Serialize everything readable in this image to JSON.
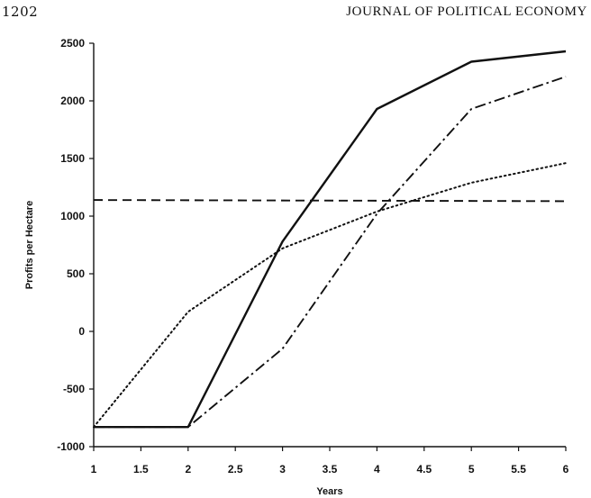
{
  "page": {
    "page_number": "1202",
    "journal_title": "JOURNAL OF POLITICAL ECONOMY"
  },
  "chart_data": {
    "type": "line",
    "title": "",
    "xlabel": "Years",
    "ylabel": "Profits per Hectare",
    "xlim": [
      1,
      6
    ],
    "ylim": [
      -1000,
      2500
    ],
    "xticks": [
      1,
      1.5,
      2,
      2.5,
      3,
      3.5,
      4,
      4.5,
      5,
      5.5,
      6
    ],
    "yticks": [
      -1000,
      -500,
      0,
      500,
      1000,
      1500,
      2000,
      2500
    ],
    "xtick_labels": [
      "1",
      "1.5",
      "2",
      "2.5",
      "3",
      "3.5",
      "4",
      "4.5",
      "5",
      "5.5",
      "6"
    ],
    "ytick_labels": [
      "-1000",
      "-500",
      "0",
      "500",
      "1000",
      "1500",
      "2000",
      "2500"
    ],
    "grid": false,
    "legend": "none",
    "series": [
      {
        "style": "solid",
        "x": [
          1,
          2,
          3,
          4,
          5,
          6
        ],
        "y": [
          -830,
          -830,
          780,
          1930,
          2340,
          2430
        ]
      },
      {
        "style": "dashdot",
        "x": [
          1,
          2,
          3,
          4,
          5,
          6
        ],
        "y": [
          -830,
          -830,
          -150,
          1020,
          1930,
          2210
        ]
      },
      {
        "style": "dotted",
        "x": [
          1,
          2,
          3,
          4,
          5,
          6
        ],
        "y": [
          -830,
          170,
          720,
          1040,
          1290,
          1460
        ]
      },
      {
        "style": "dashed",
        "x": [
          1,
          6
        ],
        "y": [
          1140,
          1130
        ]
      }
    ]
  }
}
